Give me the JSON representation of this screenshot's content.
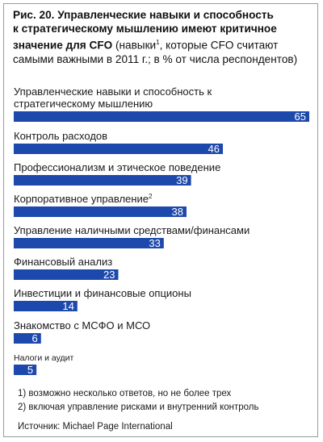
{
  "title": {
    "line1": "Рис. 20. Управленческие навыки и способность",
    "line2": "к стратегическому мышлению имеют критичное",
    "line3_bold": "значение для CFO",
    "line3_rest": " (навыки",
    "line3_sup": "1",
    "line3_end": ", которые CFO считают",
    "line4": "самыми важными в 2011 г.; в % от числа респондентов)"
  },
  "chart_data": {
    "type": "bar",
    "orientation": "horizontal",
    "bar_color": "#1e49ac",
    "categories": [
      {
        "lines": [
          "Управленческие навыки и способность к",
          "стратегическому мышлению"
        ],
        "sup": ""
      },
      {
        "lines": [
          "Контроль расходов"
        ],
        "sup": ""
      },
      {
        "lines": [
          "Профессионализм и этическое поведение"
        ],
        "sup": ""
      },
      {
        "lines": [
          "Корпоративное управление"
        ],
        "sup": "2"
      },
      {
        "lines": [
          "Управление наличными средствами/финансами"
        ],
        "sup": ""
      },
      {
        "lines": [
          "Финансовый анализ"
        ],
        "sup": ""
      },
      {
        "lines": [
          "Инвестиции и финансовые опционы"
        ],
        "sup": ""
      },
      {
        "lines": [
          "Знакомство с МСФО и МСО"
        ],
        "sup": ""
      },
      {
        "lines": [
          "Налоги и аудит"
        ],
        "sup": "",
        "small": true
      }
    ],
    "values": [
      65,
      46,
      39,
      38,
      33,
      23,
      14,
      6,
      5
    ],
    "xlim": [
      0,
      65
    ]
  },
  "footnotes": [
    "1)  возможно несколько ответов, но не более трех",
    "2)  включая управление рисками и внутренний контроль"
  ],
  "source": "Источник: Michael Page International"
}
